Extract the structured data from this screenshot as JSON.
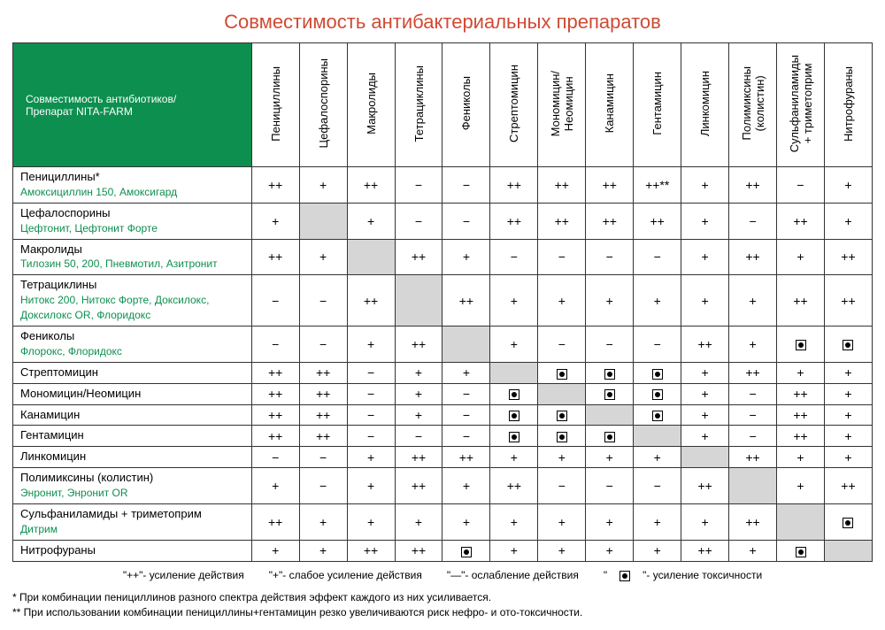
{
  "title": "Совместимость антибактериальных препаратов",
  "title_color": "#d04a34",
  "header_bg": "#0d8f4f",
  "sub_color": "#0d8f4f",
  "corner_label": "Совместимость антибиотиков/\nПрепарат NITA-FARM",
  "columns": [
    "Пенициллины",
    "Цефалоспорины",
    "Макролиды",
    "Тетрациклины",
    "Фениколы",
    "Стрептомицин",
    "Мономицин/\nНеомицин",
    "Канамицин",
    "Гентамицин",
    "Линкомицин",
    "Полимиксины\n(колистин)",
    "Сульфаниламиды\n+ триметоприм",
    "Нитрофураны"
  ],
  "rows": [
    {
      "main": "Пенициллины*",
      "sub": "Амоксициллин 150, Амоксигард",
      "cells": [
        "++",
        "+",
        "++",
        "−",
        "−",
        "++",
        "++",
        "++",
        "++**",
        "+",
        "++",
        "−",
        "+"
      ],
      "diag": -1
    },
    {
      "main": "Цефалоспорины",
      "sub": "Цефтонит, Цефтонит Форте",
      "cells": [
        "+",
        "",
        "+",
        "−",
        "−",
        "++",
        "++",
        "++",
        "++",
        "+",
        "−",
        "++",
        "+"
      ],
      "diag": 1
    },
    {
      "main": "Макролиды",
      "sub": "Тилозин 50, 200, Пневмотил, Азитронит",
      "cells": [
        "++",
        "+",
        "",
        "++",
        "+",
        "−",
        "−",
        "−",
        "−",
        "+",
        "++",
        "+",
        "++"
      ],
      "diag": 2
    },
    {
      "main": "Тетрациклины",
      "sub": "Нитокс 200, Нитокс Форте, Доксилокс,\nДоксилокс OR, Флоридокс",
      "cells": [
        "−",
        "−",
        "++",
        "",
        "++",
        "+",
        "+",
        "+",
        "+",
        "+",
        "+",
        "++",
        "++"
      ],
      "diag": 3
    },
    {
      "main": "Фениколы",
      "sub": "Флорокс, Флоридокс",
      "cells": [
        "−",
        "−",
        "+",
        "++",
        "",
        "+",
        "−",
        "−",
        "−",
        "++",
        "+",
        "TOX",
        "TOX"
      ],
      "diag": 4
    },
    {
      "main": "Стрептомицин",
      "sub": "",
      "cells": [
        "++",
        "++",
        "−",
        "+",
        "+",
        "",
        "TOX",
        "TOX",
        "TOX",
        "+",
        "++",
        "+",
        "+"
      ],
      "diag": 5
    },
    {
      "main": "Мономицин/Неомицин",
      "sub": "",
      "cells": [
        "++",
        "++",
        "−",
        "+",
        "−",
        "TOX",
        "",
        "TOX",
        "TOX",
        "+",
        "−",
        "++",
        "+"
      ],
      "diag": 6
    },
    {
      "main": "Канамицин",
      "sub": "",
      "cells": [
        "++",
        "++",
        "−",
        "+",
        "−",
        "TOX",
        "TOX",
        "",
        "TOX",
        "+",
        "−",
        "++",
        "+"
      ],
      "diag": 7
    },
    {
      "main": "Гентамицин",
      "sub": "",
      "cells": [
        "++",
        "++",
        "−",
        "−",
        "−",
        "TOX",
        "TOX",
        "TOX",
        "",
        "+",
        "−",
        "++",
        "+"
      ],
      "diag": 8
    },
    {
      "main": "Линкомицин",
      "sub": "",
      "cells": [
        "−",
        "−",
        "+",
        "++",
        "++",
        "+",
        "+",
        "+",
        "+",
        "",
        "++",
        "+",
        "+"
      ],
      "diag": 9
    },
    {
      "main": "Полимиксины (колистин)",
      "sub": "Энронит, Энронит OR",
      "cells": [
        "+",
        "−",
        "+",
        "++",
        "+",
        "++",
        "−",
        "−",
        "−",
        "++",
        "",
        "+",
        "++"
      ],
      "diag": 10
    },
    {
      "main": "Сульфаниламиды + триметоприм",
      "sub": "Дитрим",
      "cells": [
        "++",
        "+",
        "+",
        "+",
        "+",
        "+",
        "+",
        "+",
        "+",
        "+",
        "++",
        "",
        "TOX"
      ],
      "diag": 11
    },
    {
      "main": "Нитрофураны",
      "sub": "",
      "cells": [
        "+",
        "+",
        "++",
        "++",
        "TOX",
        "+",
        "+",
        "+",
        "+",
        "++",
        "+",
        "TOX",
        ""
      ],
      "diag": 12
    }
  ],
  "legend": [
    "\"++\"- усиление действия",
    "\"+\"- слабое усиление действия",
    "\"—\"- ослабление действия",
    "\"TOX\"- усиление токсичности"
  ],
  "footnotes": [
    "*  При комбинации пенициллинов разного спектра действия эффект каждого из них усиливается.",
    "** При использовании комбинации пенициллины+гентамицин резко увеличиваются риск нефро- и ото-токсичности."
  ]
}
